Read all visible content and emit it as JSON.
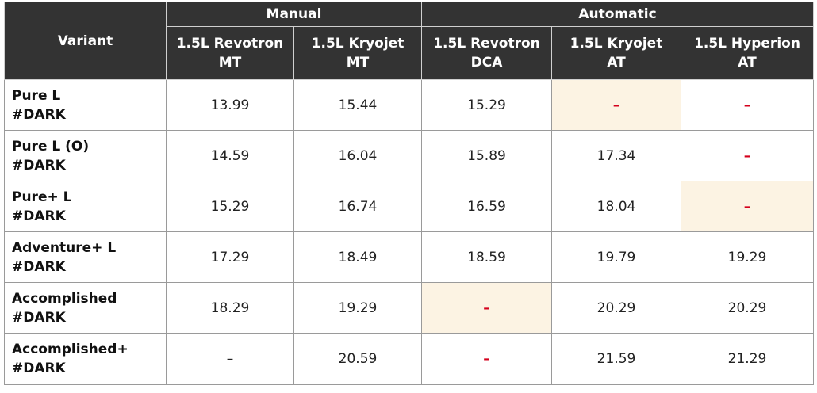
{
  "table": {
    "variant_header": "Variant",
    "groups": [
      {
        "label": "Manual"
      },
      {
        "label": "Automatic"
      }
    ],
    "powertrains": [
      {
        "line1": "1.5L Revotron",
        "line2": "MT"
      },
      {
        "line1": "1.5L Kryojet",
        "line2": "MT"
      },
      {
        "line1": "1.5L Revotron",
        "line2": "DCA"
      },
      {
        "line1": "1.5L Kryojet",
        "line2": "AT"
      },
      {
        "line1": "1.5L Hyperion",
        "line2": "AT"
      }
    ],
    "rows": [
      {
        "name": "Pure L",
        "suffix": "#DARK",
        "cells": [
          "13.99",
          "15.44",
          "15.29",
          "–",
          "–"
        ]
      },
      {
        "name": "Pure L (O)",
        "suffix": "#DARK",
        "cells": [
          "14.59",
          "16.04",
          "15.89",
          "17.34",
          "–"
        ]
      },
      {
        "name": "Pure+ L",
        "suffix": "#DARK",
        "cells": [
          "15.29",
          "16.74",
          "16.59",
          "18.04",
          "–"
        ]
      },
      {
        "name": "Adventure+ L",
        "suffix": "#DARK",
        "cells": [
          "17.29",
          "18.49",
          "18.59",
          "19.79",
          "19.29"
        ]
      },
      {
        "name": "Accomplished",
        "suffix": "#DARK",
        "cells": [
          "18.29",
          "19.29",
          "–",
          "20.29",
          "20.29"
        ]
      },
      {
        "name": "Accomplished+",
        "suffix": "#DARK",
        "cells": [
          "–",
          "20.59",
          "–",
          "21.59",
          "21.29"
        ]
      }
    ]
  },
  "colors": {
    "header_bg": "#333333",
    "header_text": "#ffffff",
    "highlight_bg": "#fcf3e3",
    "unavailable_dash": "#d4001c"
  }
}
